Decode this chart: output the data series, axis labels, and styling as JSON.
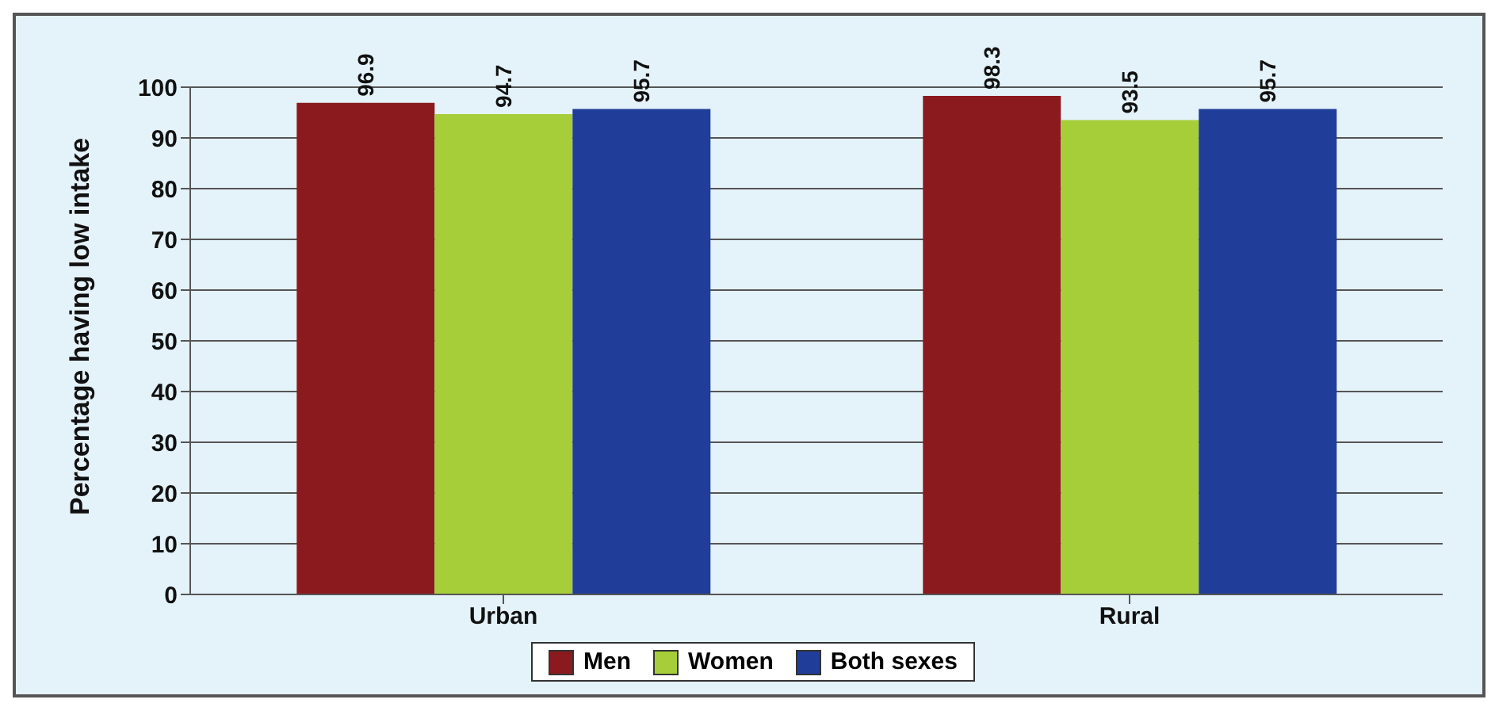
{
  "chart_data": {
    "type": "bar",
    "ylabel": "Percentage having low intake",
    "categories": [
      "Urban",
      "Rural"
    ],
    "series": [
      {
        "name": "Men",
        "color": "#8b1a1e",
        "values": [
          96.9,
          98.3
        ]
      },
      {
        "name": "Women",
        "color": "#a6ce39",
        "values": [
          94.7,
          93.5
        ]
      },
      {
        "name": "Both sexes",
        "color": "#1f3d99",
        "values": [
          95.7,
          95.7
        ]
      }
    ],
    "ylim": [
      0,
      100
    ],
    "yticks": [
      0,
      10,
      20,
      30,
      40,
      50,
      60,
      70,
      80,
      90,
      100
    ],
    "grid": "y",
    "legend": "bottom",
    "data_labels": true
  }
}
